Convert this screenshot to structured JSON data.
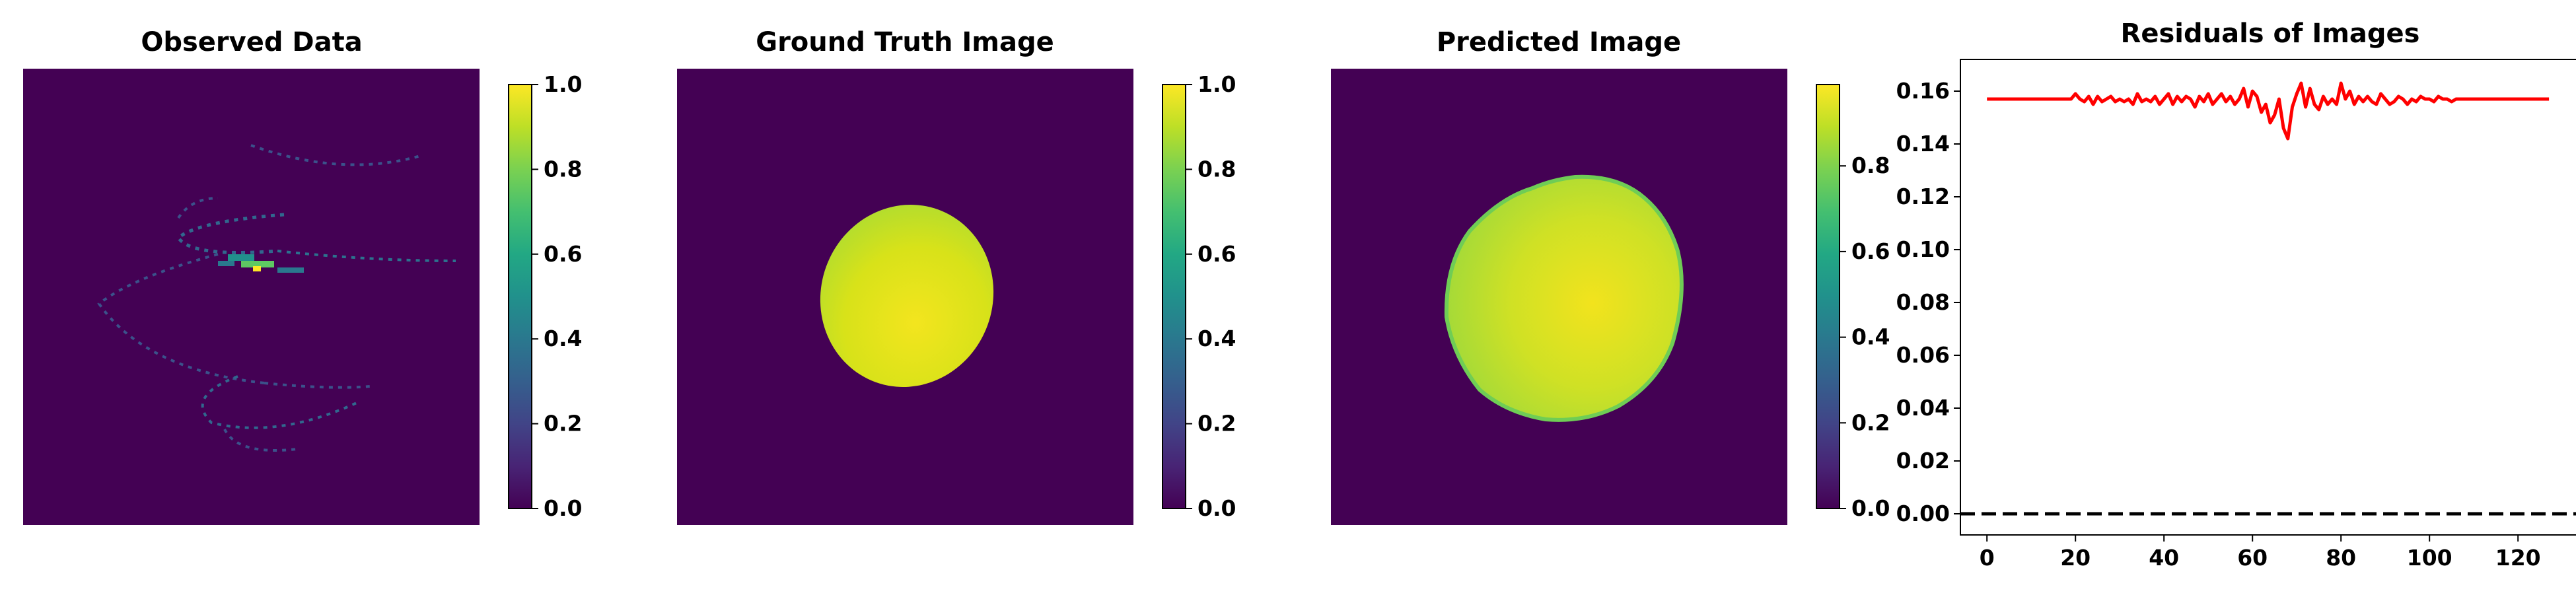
{
  "chart_data": [
    {
      "type": "heatmap",
      "title": "Observed Data",
      "colormap": "viridis",
      "colorbar": {
        "min": 0.0,
        "max": 1.0,
        "ticks": [
          "0.0",
          "0.2",
          "0.4",
          "0.6",
          "0.8",
          "1.0"
        ]
      },
      "axes_visible": false,
      "content": "sparse spiral sampling trajectory with intensity up to 1.0 near center"
    },
    {
      "type": "heatmap",
      "title": "Ground Truth Image",
      "colormap": "viridis",
      "colorbar": {
        "min": 0.0,
        "max": 1.0,
        "ticks": [
          "0.0",
          "0.2",
          "0.4",
          "0.6",
          "0.8",
          "1.0"
        ]
      },
      "axes_visible": false,
      "content": "tilted ellipse, values approx 0.75 to 1.0"
    },
    {
      "type": "heatmap",
      "title": "Predicted Image",
      "colormap": "viridis",
      "colorbar": {
        "min": 0.0,
        "max": 0.99,
        "ticks": [
          "0.0",
          "0.2",
          "0.4",
          "0.6",
          "0.8"
        ]
      },
      "axes_visible": false,
      "content": "blurred ellipse with rough boundary, values approx 0.75 to 0.97"
    },
    {
      "type": "line",
      "title": "Residuals of Images",
      "xlim": [
        -6,
        134
      ],
      "ylim": [
        -0.008,
        0.172
      ],
      "xticks": [
        "0",
        "20",
        "40",
        "60",
        "80",
        "100",
        "120"
      ],
      "yticks": [
        "0.00",
        "0.02",
        "0.04",
        "0.06",
        "0.08",
        "0.10",
        "0.12",
        "0.14",
        "0.16"
      ],
      "series": [
        {
          "color": "#ff0000",
          "style": "solid",
          "x": [
            0,
            1,
            2,
            3,
            4,
            5,
            6,
            7,
            8,
            9,
            10,
            11,
            12,
            13,
            14,
            15,
            16,
            17,
            18,
            19,
            20,
            21,
            22,
            23,
            24,
            25,
            26,
            27,
            28,
            29,
            30,
            31,
            32,
            33,
            34,
            35,
            36,
            37,
            38,
            39,
            40,
            41,
            42,
            43,
            44,
            45,
            46,
            47,
            48,
            49,
            50,
            51,
            52,
            53,
            54,
            55,
            56,
            57,
            58,
            59,
            60,
            61,
            62,
            63,
            64,
            65,
            66,
            67,
            68,
            69,
            70,
            71,
            72,
            73,
            74,
            75,
            76,
            77,
            78,
            79,
            80,
            81,
            82,
            83,
            84,
            85,
            86,
            87,
            88,
            89,
            90,
            91,
            92,
            93,
            94,
            95,
            96,
            97,
            98,
            99,
            100,
            101,
            102,
            103,
            104,
            105,
            106,
            107,
            108,
            109,
            110,
            111,
            112,
            113,
            114,
            115,
            116,
            117,
            118,
            119,
            120,
            121,
            122,
            123,
            124,
            125,
            126,
            127
          ],
          "values": [
            0.157,
            0.157,
            0.157,
            0.157,
            0.157,
            0.157,
            0.157,
            0.157,
            0.157,
            0.157,
            0.157,
            0.157,
            0.157,
            0.157,
            0.157,
            0.157,
            0.157,
            0.157,
            0.157,
            0.157,
            0.159,
            0.157,
            0.156,
            0.158,
            0.155,
            0.158,
            0.156,
            0.157,
            0.158,
            0.156,
            0.157,
            0.156,
            0.157,
            0.155,
            0.159,
            0.156,
            0.157,
            0.156,
            0.158,
            0.155,
            0.157,
            0.159,
            0.155,
            0.158,
            0.156,
            0.158,
            0.157,
            0.154,
            0.158,
            0.156,
            0.159,
            0.155,
            0.157,
            0.159,
            0.156,
            0.158,
            0.155,
            0.157,
            0.161,
            0.154,
            0.16,
            0.158,
            0.152,
            0.155,
            0.148,
            0.151,
            0.157,
            0.146,
            0.142,
            0.154,
            0.159,
            0.163,
            0.154,
            0.161,
            0.155,
            0.153,
            0.158,
            0.155,
            0.157,
            0.155,
            0.163,
            0.157,
            0.16,
            0.155,
            0.158,
            0.156,
            0.158,
            0.156,
            0.155,
            0.159,
            0.157,
            0.155,
            0.156,
            0.158,
            0.157,
            0.155,
            0.157,
            0.156,
            0.158,
            0.157,
            0.157,
            0.156,
            0.158,
            0.157,
            0.157,
            0.156,
            0.157,
            0.157,
            0.157,
            0.157,
            0.157,
            0.157,
            0.157,
            0.157,
            0.157,
            0.157,
            0.157,
            0.157,
            0.157,
            0.157,
            0.157,
            0.157,
            0.157,
            0.157,
            0.157,
            0.157,
            0.157,
            0.157
          ]
        },
        {
          "color": "#000000",
          "style": "dashed",
          "x": [
            -6,
            134
          ],
          "values": [
            0,
            0
          ]
        }
      ]
    }
  ]
}
